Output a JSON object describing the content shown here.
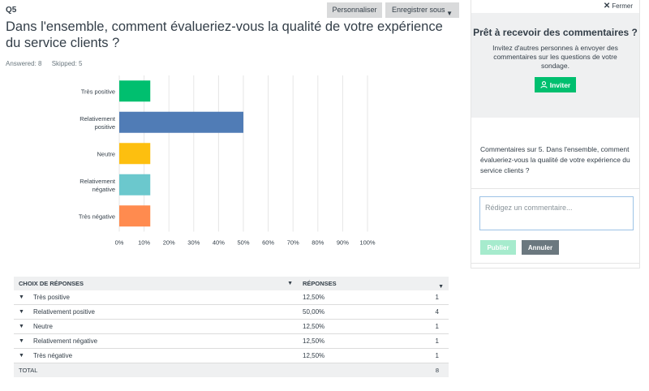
{
  "question": {
    "number": "Q5",
    "title": "Dans l'ensemble, comment évalueriez-vous la qualité de votre expérience du service clients ?",
    "answered": "Answered: 8",
    "skipped": "Skipped: 5"
  },
  "toolbar": {
    "customize_label": "Personnaliser",
    "save_label": "Enregistrer sous"
  },
  "chart_data": {
    "type": "bar",
    "orientation": "horizontal",
    "categories": [
      "Très positive",
      "Relativement positive",
      "Neutre",
      "Relativement négative",
      "Très négative"
    ],
    "values": [
      12.5,
      50,
      12.5,
      12.5,
      12.5
    ],
    "colors": [
      "#00bf6f",
      "#507cb6",
      "#fdbf0f",
      "#6bc8cd",
      "#ff8b4f"
    ],
    "xlim": [
      0,
      100
    ],
    "xticks": [
      "0%",
      "10%",
      "20%",
      "30%",
      "40%",
      "50%",
      "60%",
      "70%",
      "80%",
      "90%",
      "100%"
    ],
    "grid": true
  },
  "table": {
    "headers": [
      "CHOIX DE RÉPONSES",
      "RÉPONSES"
    ],
    "rows": [
      {
        "label": "Très positive",
        "percent": "12,50%",
        "count": "1"
      },
      {
        "label": "Relativement positive",
        "percent": "50,00%",
        "count": "4"
      },
      {
        "label": "Neutre",
        "percent": "12,50%",
        "count": "1"
      },
      {
        "label": "Relativement négative",
        "percent": "12,50%",
        "count": "1"
      },
      {
        "label": "Très négative",
        "percent": "12,50%",
        "count": "1"
      }
    ],
    "total_label": "TOTAL",
    "total_count": "8"
  },
  "sidebar": {
    "close_label": "Fermer",
    "invite_title": "Prêt à recevoir des commentaires ?",
    "invite_text": "Invitez d'autres personnes à envoyer des commentaires sur les questions de votre sondage.",
    "invite_button": "Inviter",
    "comment_title": "Commentaires sur 5. Dans l'ensemble, comment évalueriez-vous la qualité de votre expérience du service clients ?",
    "comment_placeholder": "Rédigez un commentaire...",
    "publish_label": "Publier",
    "cancel_label": "Annuler"
  }
}
